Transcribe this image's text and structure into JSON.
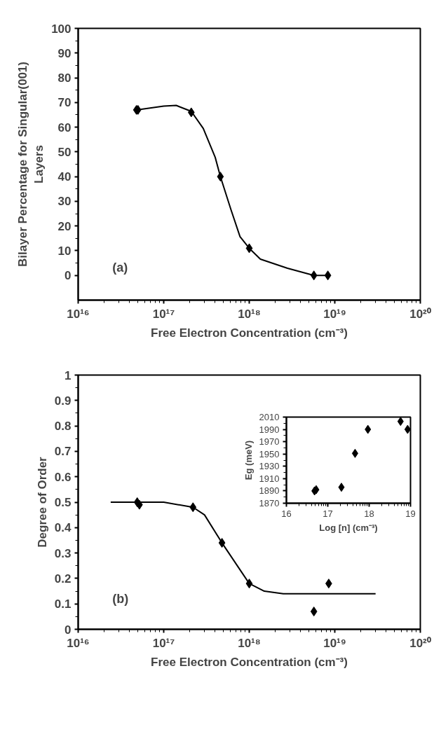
{
  "chart_data": [
    {
      "type": "scatter",
      "xlabel": "Free Electron Concentration (cm⁻³)",
      "ylabel": "Bilayer Percentage for Singular(001)\nLayers",
      "annotations": [
        "(a)"
      ],
      "log": "x",
      "marker": "diamond",
      "xlim": [
        1e+16,
        1e+20
      ],
      "xticks": [
        {
          "value": 1e+16,
          "label": "10¹⁶"
        },
        {
          "value": 1e+17,
          "label": "10¹⁷"
        },
        {
          "value": 1e+18,
          "label": "10¹⁸"
        },
        {
          "value": 1e+19,
          "label": "10¹⁹"
        },
        {
          "value": 1e+20,
          "label": "10²⁰"
        }
      ],
      "ylim": [
        -10,
        100
      ],
      "yticks": [
        0,
        10,
        20,
        30,
        40,
        50,
        60,
        70,
        80,
        90,
        100
      ],
      "series": [
        {
          "color": "#000000",
          "x": [
            4.8e+16,
            5e+16,
            2.1e+17,
            4.6e+17,
            1e+18,
            5.7e+18,
            8.3e+18
          ],
          "values": [
            67,
            67,
            66,
            40,
            11,
            0,
            0
          ]
        },
        {
          "type": "line",
          "marker": "none",
          "color": "#000000",
          "x": [
            4.8e+16,
            1e+17,
            1.4e+17,
            2.1e+17,
            2.9e+17,
            4e+17,
            4.6e+17,
            6.1e+17,
            7.8e+17,
            1e+18,
            1.35e+18,
            2.8e+18,
            5.7e+18,
            8.3e+18
          ],
          "values": [
            67,
            68.5,
            68.8,
            66.4,
            59.5,
            47.8,
            40,
            26.7,
            15.7,
            11,
            6.6,
            2.9,
            0,
            0
          ]
        }
      ]
    },
    {
      "type": "scatter",
      "xlabel": "Free Electron Concentration (cm⁻³)",
      "ylabel": "Degree of Order",
      "annotations": [
        "(b)"
      ],
      "log": "x",
      "marker": "diamond",
      "xlim": [
        1e+16,
        1e+20
      ],
      "xticks": [
        {
          "value": 1e+16,
          "label": "10¹⁶"
        },
        {
          "value": 1e+17,
          "label": "10¹⁷"
        },
        {
          "value": 1e+18,
          "label": "10¹⁸"
        },
        {
          "value": 1e+19,
          "label": "10¹⁹"
        },
        {
          "value": 1e+20,
          "label": "10²⁰"
        }
      ],
      "ylim": [
        0,
        1
      ],
      "yticks": [
        0,
        0.1,
        0.2,
        0.3,
        0.4,
        0.5,
        0.6,
        0.7,
        0.8,
        0.9,
        1
      ],
      "series": [
        {
          "color": "#000000",
          "x": [
            4.9e+16,
            5.2e+16,
            2.2e+17,
            4.8e+17,
            1e+18,
            5.7e+18,
            8.5e+18
          ],
          "values": [
            0.5,
            0.49,
            0.48,
            0.34,
            0.18,
            0.07,
            0.18
          ]
        },
        {
          "type": "line",
          "marker": "none",
          "color": "#000000",
          "x": [
            2.4e+16,
            1e+17,
            2.2e+17,
            3e+17,
            4.8e+17,
            1e+18,
            1.5e+18,
            2.5e+18,
            3e+19
          ],
          "values": [
            0.5,
            0.5,
            0.48,
            0.45,
            0.34,
            0.18,
            0.15,
            0.14,
            0.14
          ]
        }
      ]
    },
    {
      "type": "scatter",
      "xlabel": "Log [n] (cm⁻³)",
      "ylabel": "Eg (meV)",
      "marker": "diamond",
      "xlim": [
        16,
        19
      ],
      "xticks": [
        16,
        17,
        18,
        19
      ],
      "ylim": [
        1870,
        2010
      ],
      "yticks": [
        1870,
        1890,
        1910,
        1930,
        1950,
        1970,
        1990,
        2010
      ],
      "series": [
        {
          "color": "#000000",
          "x": [
            16.68,
            16.72,
            17.33,
            17.66,
            17.97,
            18.76,
            18.93
          ],
          "values": [
            1890,
            1892,
            1896,
            1951,
            1990,
            2003,
            1990
          ]
        }
      ]
    }
  ]
}
